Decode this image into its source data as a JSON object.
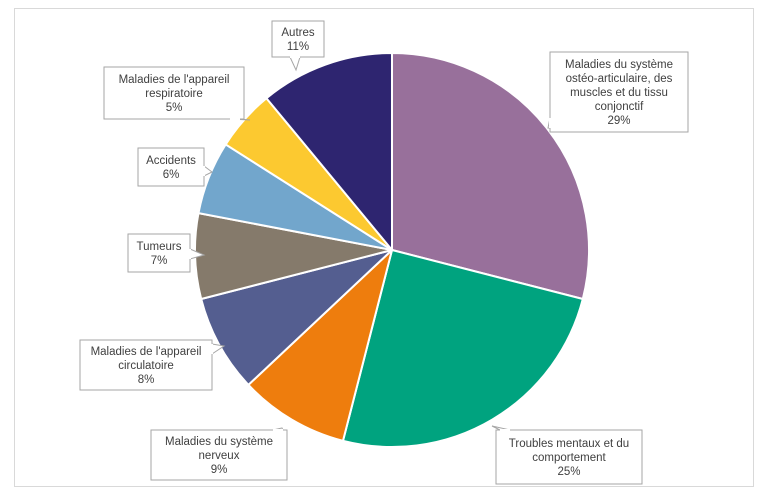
{
  "chart_data": {
    "type": "pie",
    "title": "",
    "slices": [
      {
        "label_lines": [
          "Maladies du système",
          "ostéo-articulaire, des",
          "muscles et du tissu",
          "conjonctif"
        ],
        "pct_label": "29%",
        "value": 29,
        "color": "#98709B"
      },
      {
        "label_lines": [
          "Troubles mentaux et du",
          "comportement"
        ],
        "pct_label": "25%",
        "value": 25,
        "color": "#00A37F"
      },
      {
        "label_lines": [
          "Maladies du système",
          "nerveux"
        ],
        "pct_label": "9%",
        "value": 9,
        "color": "#EE7D0D"
      },
      {
        "label_lines": [
          "Maladies de l'appareil",
          "circulatoire"
        ],
        "pct_label": "8%",
        "value": 8,
        "color": "#545E90"
      },
      {
        "label_lines": [
          "Tumeurs"
        ],
        "pct_label": "7%",
        "value": 7,
        "color": "#857A6B"
      },
      {
        "label_lines": [
          "Accidents"
        ],
        "pct_label": "6%",
        "value": 6,
        "color": "#72A6CC"
      },
      {
        "label_lines": [
          "Maladies de l'appareil",
          "respiratoire"
        ],
        "pct_label": "5%",
        "value": 5,
        "color": "#FCC930"
      },
      {
        "label_lines": [
          "Autres"
        ],
        "pct_label": "11%",
        "value": 11,
        "color": "#2E2570"
      }
    ]
  }
}
